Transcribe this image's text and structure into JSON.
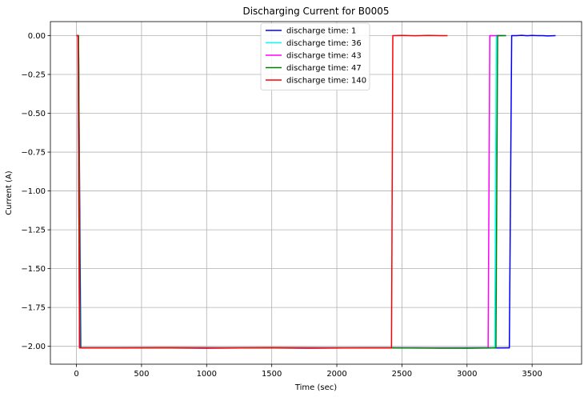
{
  "chart_data": {
    "type": "line",
    "title": "Discharging Current for B0005",
    "xlabel": "Time (sec)",
    "ylabel": "Current (A)",
    "xlim": [
      -200,
      3880
    ],
    "ylim": [
      -2.115,
      0.09
    ],
    "xticks": [
      0,
      500,
      1000,
      1500,
      2000,
      2500,
      3000,
      3500
    ],
    "xtick_labels": [
      "0",
      "500",
      "1000",
      "1500",
      "2000",
      "2500",
      "3000",
      "3500"
    ],
    "yticks": [
      0.0,
      -0.25,
      -0.5,
      -0.75,
      -1.0,
      -1.25,
      -1.5,
      -1.75,
      -2.0
    ],
    "ytick_labels": [
      "0.00",
      "−0.25",
      "−0.50",
      "−0.75",
      "−1.00",
      "−1.25",
      "−1.50",
      "−1.75",
      "−2.00"
    ],
    "grid": true,
    "legend_position": "upper-center",
    "series": [
      {
        "name": "discharge time: 1",
        "color": "#0000ff",
        "x": [
          0,
          16,
          33,
          200,
          600,
          1000,
          1400,
          1800,
          2200,
          2600,
          3000,
          3300,
          3325,
          3343,
          3380,
          3420,
          3460,
          3500,
          3540,
          3580,
          3620,
          3680
        ],
        "y": [
          0.0,
          0.0,
          -2.01,
          -2.01,
          -2.01,
          -2.012,
          -2.01,
          -2.012,
          -2.01,
          -2.01,
          -2.012,
          -2.01,
          -2.01,
          0.0,
          0.0,
          0.002,
          -0.001,
          0.001,
          0.0,
          0.0,
          -0.002,
          0.0
        ]
      },
      {
        "name": "discharge time: 36",
        "color": "#00ffff",
        "x": [
          0,
          16,
          28,
          500,
          1000,
          1500,
          2000,
          2500,
          3000,
          3200,
          3213,
          3225,
          3260,
          3300
        ],
        "y": [
          0.0,
          0.0,
          -2.01,
          -2.01,
          -2.01,
          -2.01,
          -2.01,
          -2.01,
          -2.01,
          -2.01,
          -2.01,
          0.0,
          0.0,
          0.0
        ]
      },
      {
        "name": "discharge time: 43",
        "color": "#ff00ff",
        "x": [
          0,
          12,
          24,
          500,
          1000,
          1500,
          2000,
          2500,
          3000,
          3150,
          3162,
          3175,
          3220,
          3270
        ],
        "y": [
          0.0,
          0.0,
          -2.01,
          -2.01,
          -2.01,
          -2.01,
          -2.01,
          -2.01,
          -2.01,
          -2.01,
          -2.01,
          0.0,
          0.0,
          0.0
        ]
      },
      {
        "name": "discharge time: 47",
        "color": "#008000",
        "x": [
          0,
          16,
          28,
          500,
          1000,
          1500,
          2000,
          2400,
          2800,
          3100,
          3210,
          3222,
          3235,
          3270,
          3300
        ],
        "y": [
          0.0,
          0.0,
          -2.01,
          -2.01,
          -2.01,
          -2.01,
          -2.01,
          -2.01,
          -2.012,
          -2.01,
          -2.01,
          -2.01,
          0.0,
          0.0,
          0.0
        ]
      },
      {
        "name": "discharge time: 140",
        "color": "#ff0000",
        "x": [
          0,
          12,
          24,
          300,
          700,
          1100,
          1500,
          1900,
          2300,
          2410,
          2420,
          2430,
          2500,
          2600,
          2700,
          2800,
          2850
        ],
        "y": [
          0.0,
          0.0,
          -2.01,
          -2.01,
          -2.008,
          -2.01,
          -2.008,
          -2.01,
          -2.01,
          -2.01,
          -2.01,
          0.0,
          0.001,
          -0.001,
          0.001,
          0.0,
          0.0
        ]
      }
    ]
  }
}
